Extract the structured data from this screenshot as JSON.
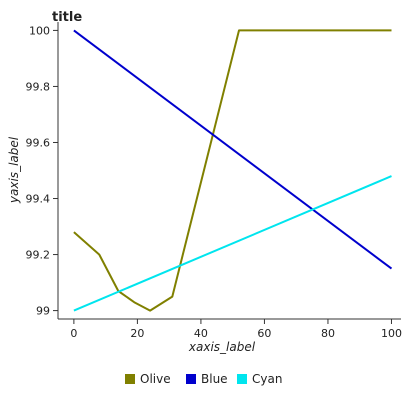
{
  "chart_data": {
    "type": "line",
    "title": "title",
    "xlabel": "xaxis_label",
    "ylabel": "yaxis_label",
    "xlim": [
      -5,
      103
    ],
    "ylim": [
      98.97,
      100.03
    ],
    "x_ticks": [
      0,
      20,
      40,
      60,
      80,
      100
    ],
    "y_ticks": [
      99.0,
      99.2,
      99.4,
      99.6,
      99.8,
      100.0
    ],
    "x_tick_labels": [
      "0",
      "20",
      "40",
      "60",
      "80",
      "100"
    ],
    "y_tick_labels": [
      "99",
      "99.2",
      "99.4",
      "99.6",
      "99.8",
      "100"
    ],
    "grid": false,
    "legend_position": "bottom",
    "series": [
      {
        "name": "Olive",
        "color": "#808000",
        "x": [
          0,
          8,
          14,
          19,
          24,
          31,
          52,
          55,
          100
        ],
        "y": [
          99.28,
          99.2,
          99.07,
          99.03,
          99.0,
          99.05,
          100.0,
          100.0,
          100.0
        ]
      },
      {
        "name": "Blue",
        "color": "#0000cd",
        "x": [
          0,
          100
        ],
        "y": [
          100.0,
          99.15
        ]
      },
      {
        "name": "Cyan",
        "color": "#00e5ee",
        "x": [
          0,
          100
        ],
        "y": [
          99.0,
          99.48
        ]
      }
    ]
  }
}
